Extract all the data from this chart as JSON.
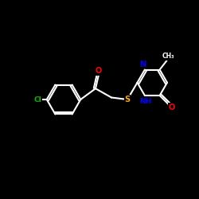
{
  "background_color": "#000000",
  "bond_color": "#ffffff",
  "atom_colors": {
    "O": "#ff0000",
    "N": "#0000ff",
    "S": "#ffaa00",
    "Cl": "#00bb00",
    "C": "#ffffff"
  },
  "figsize": [
    2.5,
    2.5
  ],
  "dpi": 100
}
